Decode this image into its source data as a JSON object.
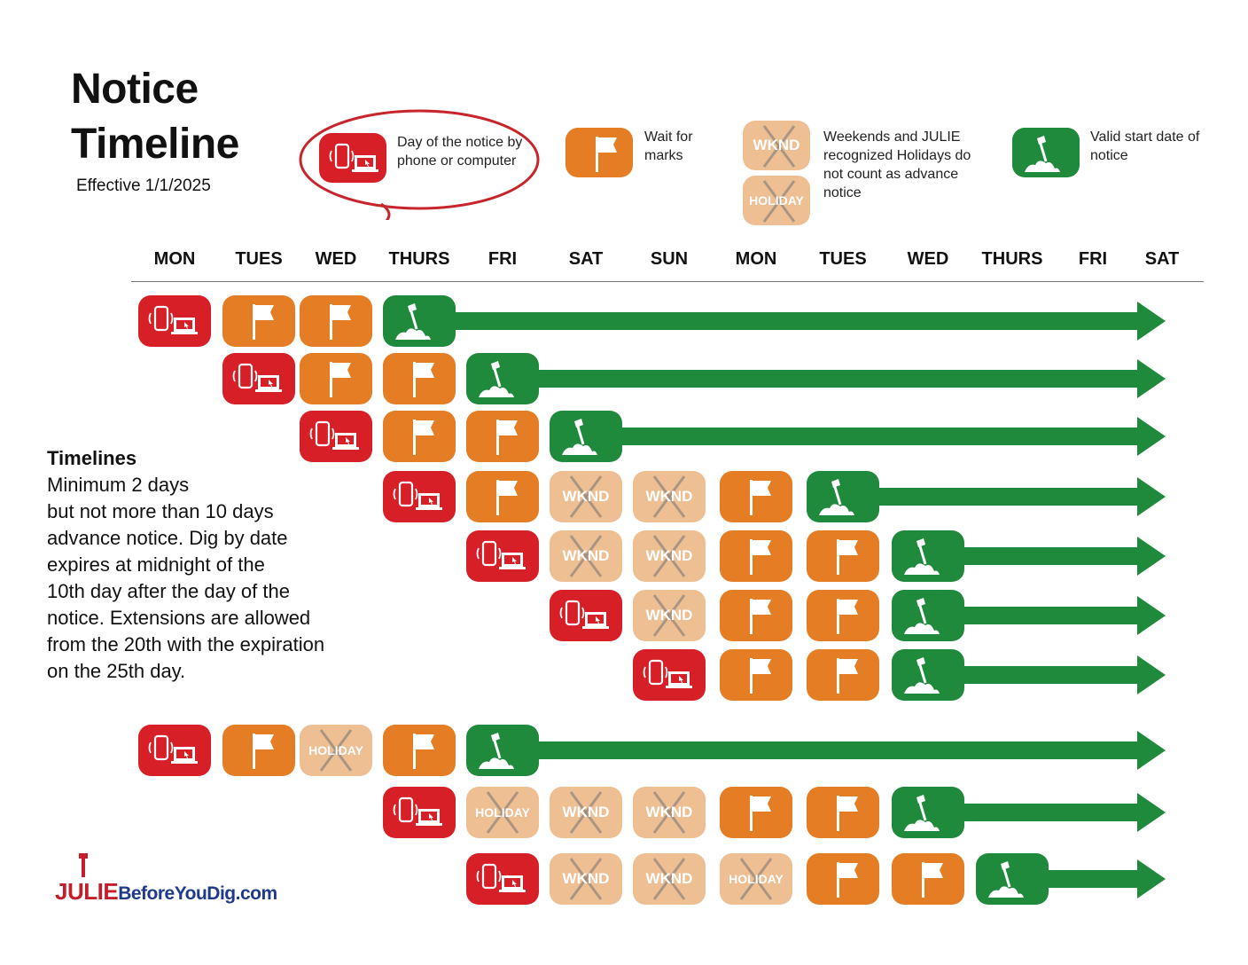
{
  "title_line1": "Notice",
  "title_line2": "Timeline",
  "effective": "Effective 1/1/2025",
  "legend": {
    "notice_day": "Day of the notice by phone or computer",
    "wait": "Wait for marks",
    "weekend": "Weekends and JULIE recognized Holidays do not count as advance notice",
    "valid": "Valid start date of notice",
    "wknd_label": "WKND",
    "holiday_label": "HOLIDAY"
  },
  "days": [
    "MON",
    "TUES",
    "WED",
    "THURS",
    "FRI",
    "SAT",
    "SUN",
    "MON",
    "TUES",
    "WED",
    "THURS",
    "FRI",
    "SAT"
  ],
  "rows": [
    [
      "notice",
      "wait",
      "wait",
      "start"
    ],
    [
      null,
      "notice",
      "wait",
      "wait",
      "start"
    ],
    [
      null,
      null,
      "notice",
      "wait",
      "wait",
      "start"
    ],
    [
      null,
      null,
      null,
      "notice",
      "wait",
      "wknd",
      "wknd",
      "wait",
      "start"
    ],
    [
      null,
      null,
      null,
      null,
      "notice",
      "wknd",
      "wknd",
      "wait",
      "wait",
      "start"
    ],
    [
      null,
      null,
      null,
      null,
      null,
      "notice",
      "wknd",
      "wait",
      "wait",
      "start"
    ],
    [
      null,
      null,
      null,
      null,
      null,
      null,
      "notice",
      "wait",
      "wait",
      "start"
    ],
    [
      "notice",
      "wait",
      "holiday",
      "wait",
      "start"
    ],
    [
      null,
      null,
      null,
      "notice",
      "holiday",
      "wknd",
      "wknd",
      "wait",
      "wait",
      "start"
    ],
    [
      null,
      null,
      null,
      null,
      "notice",
      "wknd",
      "wknd",
      "holiday",
      "wait",
      "wait",
      "start"
    ]
  ],
  "colors": {
    "notice": "#d71f27",
    "wait": "#e57d24",
    "weekend": "#edbf93",
    "start": "#1f8a3c",
    "legend_ring": "#c8242b"
  },
  "notes": {
    "heading": "Timelines",
    "lines": [
      "Minimum 2 days",
      "but not more than 10 days",
      "advance notice. Dig by date",
      "expires at midnight of the",
      "10th day after the day of the",
      "notice. Extensions are allowed",
      "from the 20th with the expiration",
      "on the 25th day."
    ]
  },
  "logo": {
    "brand": "JULIE",
    "domain": "BeforeYouDig.com"
  }
}
